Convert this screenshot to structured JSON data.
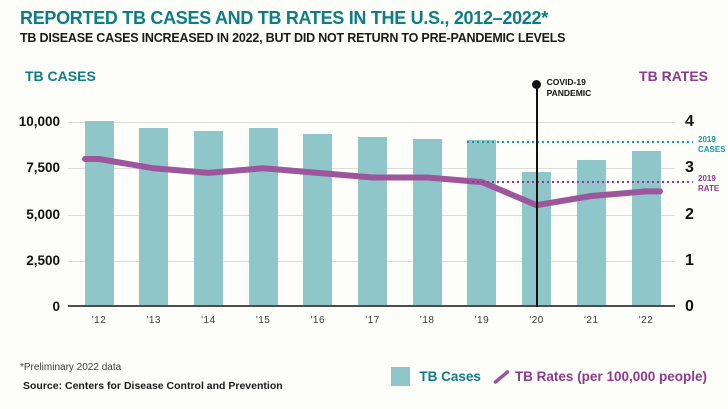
{
  "header": {
    "title": "REPORTED TB CASES AND TB RATES IN THE U.S., 2012–2022*",
    "subtitle": "TB DISEASE CASES INCREASED IN 2022, BUT DID NOT RETURN TO PRE-PANDEMIC LEVELS"
  },
  "chart_data": {
    "type": "bar",
    "categories": [
      "'12",
      "'13",
      "'14",
      "'15",
      "'16",
      "'17",
      "'18",
      "'19",
      "'20",
      "'21",
      "'22"
    ],
    "series": [
      {
        "name": "TB Cases",
        "type": "bar",
        "axis": "left",
        "values": [
          9945,
          9556,
          9398,
          9547,
          9242,
          9082,
          8996,
          8895,
          7170,
          7860,
          8300
        ]
      },
      {
        "name": "TB Rates",
        "type": "line",
        "axis": "right",
        "values": [
          3.2,
          3.0,
          2.9,
          3.0,
          2.9,
          2.8,
          2.8,
          2.7,
          2.2,
          2.4,
          2.5
        ]
      }
    ],
    "left_axis": {
      "title": "TB CASES",
      "ticks": [
        "10,000",
        "7,500",
        "5,000",
        "2,500",
        "0"
      ],
      "tick_values": [
        10000,
        7500,
        5000,
        2500,
        0
      ],
      "max": 10000
    },
    "right_axis": {
      "title": "TB RATES",
      "ticks": [
        "4",
        "3",
        "2",
        "1",
        "0"
      ],
      "tick_values": [
        4,
        3,
        2,
        1,
        0
      ],
      "max": 4
    },
    "annotations": {
      "covid": {
        "label_lines": [
          "COVID-19",
          "PANDEMIC"
        ],
        "category_index": 8
      },
      "ref_cases": {
        "label_lines": [
          "2019",
          "CASES"
        ],
        "value": 8895,
        "start_index": 7
      },
      "ref_rate": {
        "label_lines": [
          "2019",
          "RATE"
        ],
        "value": 2.7,
        "start_index": 7
      }
    },
    "grid": true,
    "legend_position": "bottom-right"
  },
  "legend": {
    "cases_label": "TB Cases",
    "rates_label": "TB Rates (per 100,000 people)"
  },
  "footer": {
    "footnote": "*Preliminary 2022 data",
    "source": "Source: Centers for Disease Control and Prevention"
  },
  "colors": {
    "teal_dark": "#0e7c85",
    "bar_teal": "#8ec6c9",
    "line_purple": "#9d559c",
    "purple_dark": "#8c3a8e",
    "ref_teal": "#1898a8",
    "gridline": "#dcdcdc",
    "axis": "#4d4d4d",
    "text_black": "#1a1a1a"
  }
}
